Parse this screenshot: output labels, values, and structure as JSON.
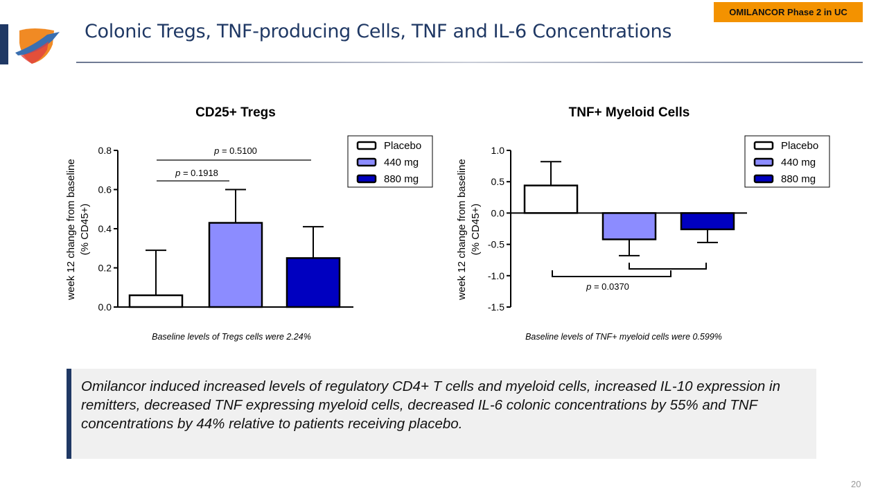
{
  "header": {
    "title": "Colonic Tregs, TNF-producing Cells, TNF and IL-6 Concentrations",
    "badge": "OMILANCOR Phase 2 in UC"
  },
  "colors": {
    "navy": "#1F3864",
    "badge": "#F39200",
    "placebo": "#FFFFFF",
    "mg440": "#8C8CFF",
    "mg880": "#0000C0"
  },
  "chart_data": [
    {
      "type": "bar",
      "title": "CD25+ Tregs",
      "ylabel_line1": "week 12 change from baseline",
      "ylabel_line2": "(% CD45+)",
      "ylim": [
        0,
        0.8
      ],
      "yticks": [
        "0.0",
        "0.2",
        "0.4",
        "0.6",
        "0.8"
      ],
      "categories": [
        "Placebo",
        "440 mg",
        "880 mg"
      ],
      "values": [
        0.06,
        0.43,
        0.25
      ],
      "error_upper": [
        0.29,
        0.6,
        0.41
      ],
      "legend": [
        "Placebo",
        "440 mg",
        "880 mg"
      ],
      "legend_position": "top-right",
      "annotations": [
        {
          "p_label": "p",
          "text": " = 0.5100",
          "from": "Placebo",
          "to": "880 mg"
        },
        {
          "p_label": "p",
          "text": " = 0.1918",
          "from": "Placebo",
          "to": "440 mg"
        }
      ],
      "caption": "Baseline levels of Tregs cells were 2.24%"
    },
    {
      "type": "bar",
      "title": "TNF+ Myeloid Cells",
      "ylabel_line1": "week 12 change from baseline",
      "ylabel_line2": "(% CD45+)",
      "ylim": [
        -1.5,
        1.0
      ],
      "yticks": [
        "-1.5",
        "-1.0",
        "-0.5",
        "0.0",
        "0.5",
        "1.0"
      ],
      "categories": [
        "Placebo",
        "440 mg",
        "880 mg"
      ],
      "values": [
        0.44,
        -0.42,
        -0.26
      ],
      "error_bound": [
        0.82,
        -0.68,
        -0.47
      ],
      "legend": [
        "Placebo",
        "440 mg",
        "880 mg"
      ],
      "legend_position": "top-right",
      "annotations": [
        {
          "p_label": "p",
          "text": " = 0.0370",
          "from": "Placebo",
          "to": "440 mg + 880 mg"
        }
      ],
      "caption": "Baseline levels of TNF+ myeloid cells were 0.599%"
    }
  ],
  "summary": "Omilancor induced increased levels of regulatory CD4+ T cells and myeloid cells, increased IL-10 expression in remitters, decreased TNF expressing myeloid cells, decreased IL-6 colonic concentrations by 55% and TNF concentrations by 44% relative to patients receiving placebo.",
  "page_number": "20"
}
